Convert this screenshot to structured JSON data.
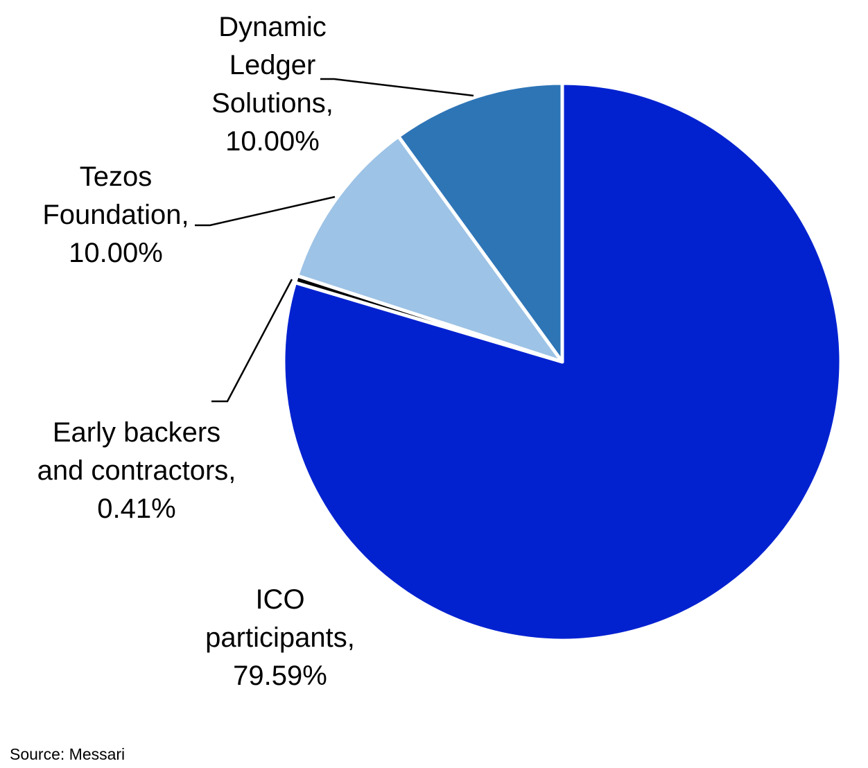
{
  "chart_data": {
    "type": "pie",
    "title": "",
    "start_angle_deg": 0,
    "direction": "clockwise",
    "slices": [
      {
        "name": "ICO participants",
        "value": 79.59,
        "label_lines": [
          "ICO",
          "participants,",
          "79.59%"
        ],
        "color": "#0222D0"
      },
      {
        "name": "Early backers and contractors",
        "value": 0.41,
        "label_lines": [
          "Early backers",
          "and contractors,",
          "0.41%"
        ],
        "color": "#000000"
      },
      {
        "name": "Tezos Foundation",
        "value": 10.0,
        "label_lines": [
          "Tezos",
          "Foundation,",
          "10.00%"
        ],
        "color": "#9DC3E6"
      },
      {
        "name": "Dynamic Ledger Solutions",
        "value": 10.0,
        "label_lines": [
          "Dynamic",
          "Ledger",
          "Solutions,",
          "10.00%"
        ],
        "color": "#2E75B6"
      }
    ]
  },
  "footer": {
    "source": "Source: Messari"
  }
}
